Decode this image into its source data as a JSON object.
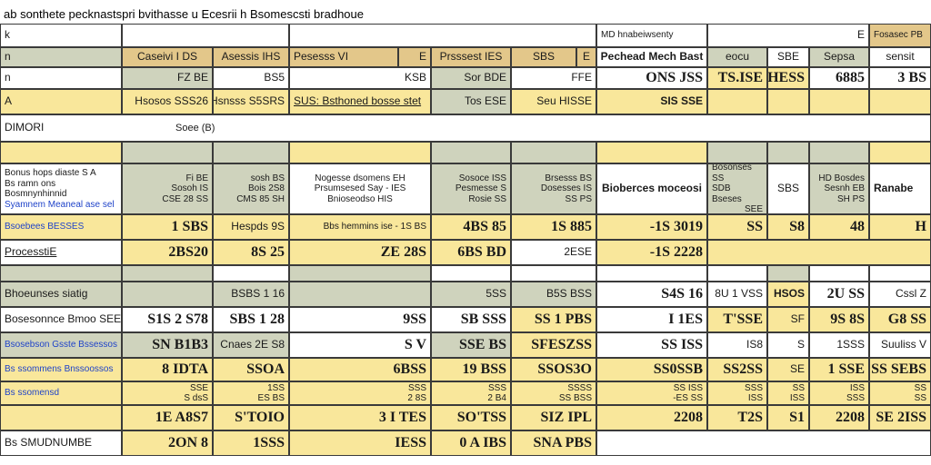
{
  "title": "ab sonthete pecknastspri bvithasse u Ecesrii h Bsomescsti bradhoue",
  "header": {
    "top_left": "k",
    "panel_label": "MD hnabeiwsenty",
    "panel_end": "E",
    "corner_label": "Fosasec PB"
  },
  "row1": {
    "label": "n",
    "c1": "Caseivi I DS",
    "c2": "Asessis IHS",
    "c3": "Pesesss VI",
    "c3b": "E",
    "c4": "Prsssest IES",
    "c5": "SBS",
    "c5b": "E",
    "c6": "Pechead Mech Bast",
    "c7": "eocu",
    "c8": "SBE",
    "c9": "Sepsa",
    "c10": "sensit"
  },
  "row2": {
    "label": "n",
    "c1": "FZ BE",
    "c2": "BS5",
    "c3": "KSB",
    "c4": "Sor BDE",
    "c5": "FFE",
    "c6": "ONS JSS",
    "c7": "TS.ISE",
    "c8": "SHESS",
    "c9": "6885",
    "c10": "3 BS"
  },
  "row3": {
    "label": "A",
    "c1": "Hsosos SSS26",
    "c2": "Hsnsss S5SRS",
    "c3": "SUS: Bsthoned bosse stet",
    "c4": "Tos ESE",
    "c5": "Seu HISSE",
    "c6": "SIS SSE"
  },
  "section1": {
    "label": "DIMORI",
    "sub": "Soee (B)"
  },
  "sub_header": {
    "label_lines": [
      "Bonus hops diaste S A",
      "Bs ramn ons Bosmnynhinnid",
      "Syamnem Meaneal ase sel"
    ],
    "c1": [
      "Fi BE",
      "Sosoh IS",
      "CSE 28 SS"
    ],
    "c2": [
      "sosh BS",
      "Bois 2S8",
      "CMS 85 SH"
    ],
    "c3": [
      "Nogesse dsomens EH",
      "Prsumsesed Say - IES",
      "Bnioseodso HIS"
    ],
    "c4": [
      "Sosoce ISS",
      "Pesmesse S",
      "Rosie SS"
    ],
    "c5": [
      "Brsesss BS",
      "Dosesses IS",
      "SS PS"
    ],
    "c6": "Bioberces moceosi",
    "c7": [
      "Bosonses SS",
      "SDB Bseses",
      "SEE"
    ],
    "c8": "SBS",
    "c9": [
      "HD Bosdes",
      "Sesnh EB",
      "SH PS"
    ],
    "c10": "Ranabe"
  },
  "row_a": {
    "label": "Bsoebees BESSES",
    "c1": "1 SBS",
    "c2": "Hespds 9S",
    "c3": "Bbs hemmins ise - 1S BS",
    "c4": "4BS 85",
    "c5": "1S 885",
    "c6": "-1S 3019",
    "c7": "SS",
    "c8": "S8",
    "c9": "48",
    "c10": "H"
  },
  "row_b": {
    "label": "ProcesstiE",
    "c1": "2BS20",
    "c2": "8S 25",
    "c3": "ZE 28S",
    "c4": "6BS BD",
    "c5": "2ESE",
    "c6": "-1S 2228"
  },
  "row_c": {
    "label": "Bhoeunses siatig",
    "c1": "BSBS 1 16",
    "c2": "5SS",
    "c3": "B5S BSS",
    "c4": "S4S 16",
    "c5": "8U 1 VSS",
    "c6": "HSOS",
    "c7": "2U SS",
    "c8": "Cssl Z"
  },
  "row_d": {
    "label": "Bosesonnce Bmoo SEE GES",
    "c1": "S1S 2 S78",
    "c2": "SBS 1 28",
    "c3": "9SS",
    "c4": "SB SSS",
    "c5": "SS 1 PBS",
    "c6": "I 1ES",
    "c7": "T'SSE",
    "c8": "SF",
    "c9": "9S 8S",
    "c10": "G8 SS"
  },
  "row_e": {
    "label": "Bsosebson Gsste Bssessos",
    "c1": "SN B1B3",
    "c2": "Cnaes 2E S8",
    "c3": "S V",
    "c4": "SSE BS",
    "c5": "SFESZSS",
    "c6": "SS ISS",
    "c7": "IS8",
    "c8": "S",
    "c9": "1SSS",
    "c10": "Suuliss V"
  },
  "row_f": {
    "label": "Bs ssommens Bnssoossos",
    "c1": "8 IDTA",
    "c2": "SSOA",
    "c3": "6BSS",
    "c4": "19 BSS",
    "c5": "SSOS3O",
    "c6": "SS0SSB",
    "c7": "SS2SS",
    "c8": "SE",
    "c9": "1 SSE",
    "c10": "SS SEBS"
  },
  "row_g": {
    "label": "Bs ssomensd",
    "c1": [
      "SSE",
      "S dsS"
    ],
    "c2": [
      "1SS",
      "ES BS"
    ],
    "c3": [
      "SSS",
      "2 8S"
    ],
    "c4": [
      "SSS",
      "2 B4"
    ],
    "c5": [
      "SSSS",
      "SS BSS"
    ],
    "c6": [
      "SS ISS",
      "-ES SS"
    ],
    "c7": [
      "SSS",
      "ISS"
    ],
    "c8": [
      "SS",
      "ISS"
    ],
    "c9": [
      "ISS",
      "SSS"
    ],
    "c10": [
      "SS",
      "SS"
    ]
  },
  "row_h": {
    "label": "",
    "c1": "1E A8S7",
    "c2": "S'TOIO",
    "c3": "3 I TES",
    "c4": "SO'TSS",
    "c5": "SIZ IPL",
    "c6": "2208",
    "c7": "T2S",
    "c8": "S1",
    "c9": "2208",
    "c10": "SE 2ISS"
  },
  "row_i": {
    "label": "Bs SMUDNUMBE",
    "c1": "2ON 8",
    "c2": "1SSS",
    "c3": "IESS",
    "c4": "0 A IBS",
    "c5": "SNA PBS"
  }
}
